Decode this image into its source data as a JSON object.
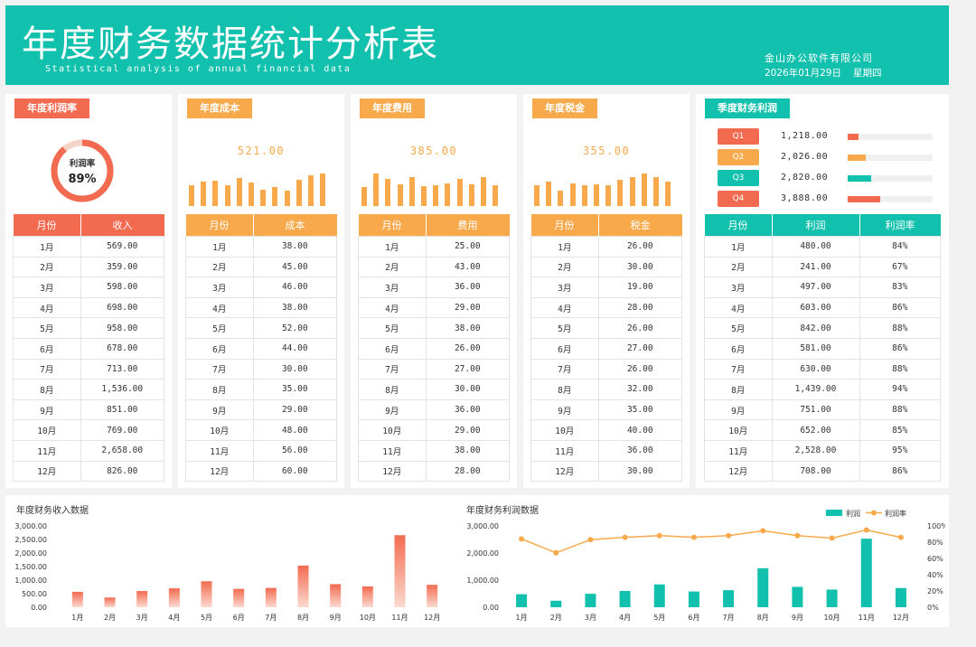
{
  "header": {
    "title": "年度财务数据统计分析表",
    "subtitle": "Statistical analysis of annual financial data",
    "company": "金山办公软件有限公司",
    "date": "2026年01月29日",
    "weekday": "星期四"
  },
  "profit_rate": {
    "tag": "年度利润率",
    "donut_label": "利润率",
    "donut_value": "89%",
    "donut_fraction": 0.89,
    "col_month": "月份",
    "col_value": "收入"
  },
  "months": [
    "1月",
    "2月",
    "3月",
    "4月",
    "5月",
    "6月",
    "7月",
    "8月",
    "9月",
    "10月",
    "11月",
    "12月"
  ],
  "income": [
    "569.00",
    "359.00",
    "598.00",
    "698.00",
    "958.00",
    "678.00",
    "713.00",
    "1,536.00",
    "851.00",
    "769.00",
    "2,658.00",
    "826.00"
  ],
  "cost": {
    "tag": "年度成本",
    "total": "521.00",
    "col_month": "月份",
    "col_value": "成本",
    "values": [
      "38.00",
      "45.00",
      "46.00",
      "38.00",
      "52.00",
      "44.00",
      "30.00",
      "35.00",
      "29.00",
      "48.00",
      "56.00",
      "60.00"
    ]
  },
  "expense": {
    "tag": "年度费用",
    "total": "385.00",
    "col_month": "月份",
    "col_value": "费用",
    "values": [
      "25.00",
      "43.00",
      "36.00",
      "29.00",
      "38.00",
      "26.00",
      "27.00",
      "30.00",
      "36.00",
      "29.00",
      "38.00",
      "28.00"
    ]
  },
  "tax": {
    "tag": "年度税金",
    "total": "355.00",
    "col_month": "月份",
    "col_value": "税金",
    "values": [
      "26.00",
      "30.00",
      "19.00",
      "28.00",
      "26.00",
      "27.00",
      "26.00",
      "32.00",
      "35.00",
      "40.00",
      "36.00",
      "30.00"
    ]
  },
  "quarterly": {
    "tag": "季度财务利润",
    "quarters": [
      {
        "label": "Q1",
        "value": "1,218.00",
        "fraction": 0.13,
        "color": "#f26b50"
      },
      {
        "label": "Q2",
        "value": "2,026.00",
        "fraction": 0.21,
        "color": "#f8a94b"
      },
      {
        "label": "Q3",
        "value": "2,820.00",
        "fraction": 0.28,
        "color": "#11c0ad"
      },
      {
        "label": "Q4",
        "value": "3,888.00",
        "fraction": 0.38,
        "color": "#f26b50"
      }
    ]
  },
  "profit_table": {
    "col_month": "月份",
    "col_profit": "利润",
    "col_rate": "利润率",
    "profit": [
      "480.00",
      "241.00",
      "497.00",
      "603.00",
      "842.00",
      "581.00",
      "630.00",
      "1,439.00",
      "751.00",
      "652.00",
      "2,528.00",
      "708.00"
    ],
    "rate": [
      "84%",
      "67%",
      "83%",
      "86%",
      "88%",
      "86%",
      "88%",
      "94%",
      "88%",
      "85%",
      "95%",
      "86%"
    ]
  },
  "colors": {
    "teal": "#11c0ad",
    "orange": "#f8a94b",
    "coral": "#f26b50"
  },
  "chart_data": [
    {
      "type": "bar",
      "title": "年度财务收入数据",
      "categories": [
        "1月",
        "2月",
        "3月",
        "4月",
        "5月",
        "6月",
        "7月",
        "8月",
        "9月",
        "10月",
        "11月",
        "12月"
      ],
      "values": [
        569,
        359,
        598,
        698,
        958,
        678,
        713,
        1536,
        851,
        769,
        2658,
        826
      ],
      "ylim": [
        0,
        3000
      ],
      "yticks": [
        "3,000.00",
        "2,500.00",
        "2,000.00",
        "1,500.00",
        "1,000.00",
        "500.00",
        "0.00"
      ]
    },
    {
      "type": "bar+line",
      "title": "年度财务利润数据",
      "categories": [
        "1月",
        "2月",
        "3月",
        "4月",
        "5月",
        "6月",
        "7月",
        "8月",
        "9月",
        "10月",
        "11月",
        "12月"
      ],
      "series": [
        {
          "name": "利润",
          "values": [
            480,
            241,
            497,
            603,
            842,
            581,
            630,
            1439,
            751,
            652,
            2528,
            708
          ]
        },
        {
          "name": "利润率",
          "values": [
            84,
            67,
            83,
            86,
            88,
            86,
            88,
            94,
            88,
            85,
            95,
            86
          ]
        }
      ],
      "ylim": [
        0,
        3000
      ],
      "y2lim": [
        0,
        100
      ],
      "yticks": [
        "3,000.00",
        "2,000.00",
        "1,000.00",
        "0.00"
      ],
      "y2ticks": [
        "100%",
        "80%",
        "60%",
        "40%",
        "20%",
        "0%"
      ]
    }
  ]
}
